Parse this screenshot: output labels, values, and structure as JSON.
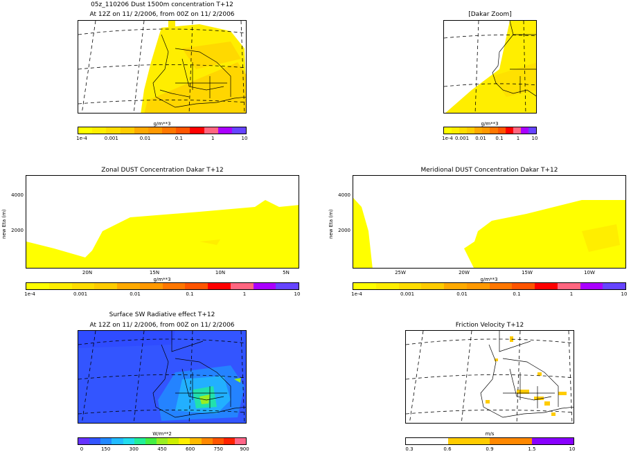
{
  "header": {
    "main_title": "05z_110206 Dust 1500m concentration T+12",
    "main_subtitle": "At 12Z on 11/ 2/2006, from 00Z on 11/ 2/2006"
  },
  "dakar_zoom": {
    "title": "[Dakar Zoom]"
  },
  "dust_colorbar": {
    "unit": "g/m**3",
    "colors": [
      "#ffff00",
      "#ffee00",
      "#ffdd00",
      "#ffcc00",
      "#ffaa00",
      "#ff9900",
      "#ff7700",
      "#ff5500",
      "#ff0000",
      "#ff6680",
      "#aa00ff",
      "#6644ff"
    ],
    "labels": [
      "1e-4",
      "0.001",
      "0.01",
      "0.1",
      "1",
      "10"
    ]
  },
  "zonal": {
    "title": "Zonal DUST Concentration Dakar T+12",
    "ylabel": "new Eta (m)",
    "yticks": [
      "4000",
      "2000"
    ],
    "xticks": [
      "20N",
      "15N",
      "10N",
      "5N"
    ]
  },
  "meridional": {
    "title": "Meridional DUST Concentration Dakar T+12",
    "ylabel": "new Eta (m)",
    "yticks": [
      "4000",
      "2000"
    ],
    "xticks": [
      "25W",
      "20W",
      "15W",
      "10W"
    ]
  },
  "sw_radiative": {
    "title": "Surface SW Radiative effect T+12",
    "subtitle": "At 12Z on 11/ 2/2006, from 00Z on 11/ 2/2006",
    "unit": "W/m**2",
    "colors": [
      "#6633ff",
      "#3355ff",
      "#2288ff",
      "#22bbff",
      "#22ddee",
      "#22ee99",
      "#44ee44",
      "#99ee22",
      "#ccee00",
      "#ffee00",
      "#ffbb00",
      "#ff8800",
      "#ff5500",
      "#ff2200",
      "#ff6688"
    ],
    "labels": [
      "0",
      "150",
      "300",
      "450",
      "600",
      "750",
      "900"
    ]
  },
  "friction": {
    "title": "Friction Velocity T+12",
    "unit": "m/s",
    "colors": [
      "#ffffff",
      "#ffcc00",
      "#ff8800",
      "#8800ff"
    ],
    "labels": [
      "0.3",
      "0.6",
      "0.9",
      "1.5",
      "10"
    ]
  }
}
